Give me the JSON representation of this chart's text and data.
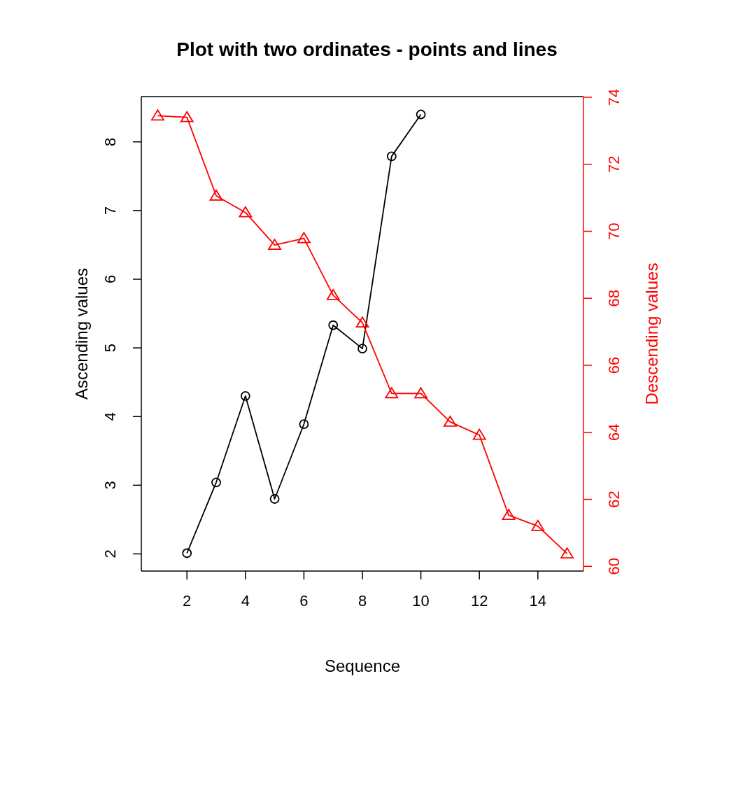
{
  "chart_data": {
    "type": "line",
    "title": "Plot with two ordinates - points and lines",
    "xlabel": "Sequence",
    "ylabel": "Ascending values",
    "y2label": "Descending values",
    "xlim": [
      0.44,
      15.56
    ],
    "xticks": [
      2,
      4,
      6,
      8,
      10,
      12,
      14
    ],
    "ylim": [
      1.75,
      8.66
    ],
    "yticks": [
      2,
      3,
      4,
      5,
      6,
      7,
      8
    ],
    "y2lim": [
      59.86,
      74.02
    ],
    "y2ticks": [
      60,
      62,
      64,
      66,
      68,
      70,
      72,
      74
    ],
    "grid": false,
    "series": [
      {
        "color": "#000000",
        "marker": "circle",
        "x": [
          2,
          3,
          4,
          5,
          6,
          7,
          8,
          9,
          10
        ],
        "values": [
          2.01,
          3.04,
          4.3,
          2.8,
          3.89,
          5.33,
          4.99,
          7.79,
          8.4
        ]
      },
      {
        "color": "#ff0000",
        "marker": "triangle",
        "axis": "y2",
        "x": [
          1,
          2,
          3,
          4,
          5,
          6,
          7,
          8,
          9,
          10,
          11,
          12,
          13,
          14,
          15
        ],
        "values": [
          73.45,
          73.4,
          71.06,
          70.56,
          69.59,
          69.79,
          68.09,
          67.27,
          65.16,
          65.16,
          64.31,
          63.92,
          61.53,
          61.2,
          60.38
        ]
      }
    ]
  }
}
